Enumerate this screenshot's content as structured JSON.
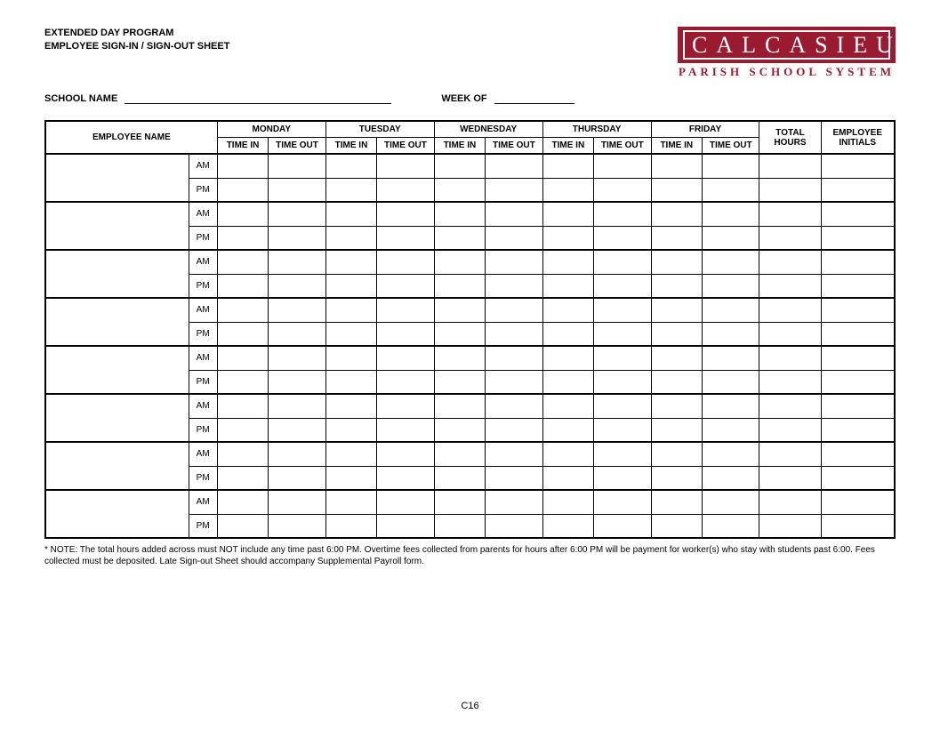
{
  "header": {
    "title1": "EXTENDED DAY PROGRAM",
    "title2": "EMPLOYEE SIGN-IN / SIGN-OUT SHEET",
    "school_label": "SCHOOL NAME",
    "week_label": "WEEK OF",
    "logo_main": "CALCASIEU",
    "logo_sub": "PARISH SCHOOL SYSTEM"
  },
  "table": {
    "employee_name": "EMPLOYEE NAME",
    "days": [
      "MONDAY",
      "TUESDAY",
      "WEDNESDAY",
      "THURSDAY",
      "FRIDAY"
    ],
    "time_in": "TIME IN",
    "time_out": "TIME OUT",
    "total_hours": "TOTAL HOURS",
    "initials": "EMPLOYEE INITIALS",
    "periods": [
      "AM",
      "PM"
    ],
    "employee_rows": 8
  },
  "note": "* NOTE:  The total hours added across must NOT include any time past 6:00 PM. Overtime fees collected from parents for hours after 6:00 PM will be payment for worker(s) who stay with students past 6:00. Fees collected must be deposited. Late Sign-out Sheet should accompany Supplemental Payroll form.",
  "footer": "C16",
  "colors": {
    "brand": "#9a1b30",
    "text": "#000000",
    "bg": "#ffffff"
  }
}
